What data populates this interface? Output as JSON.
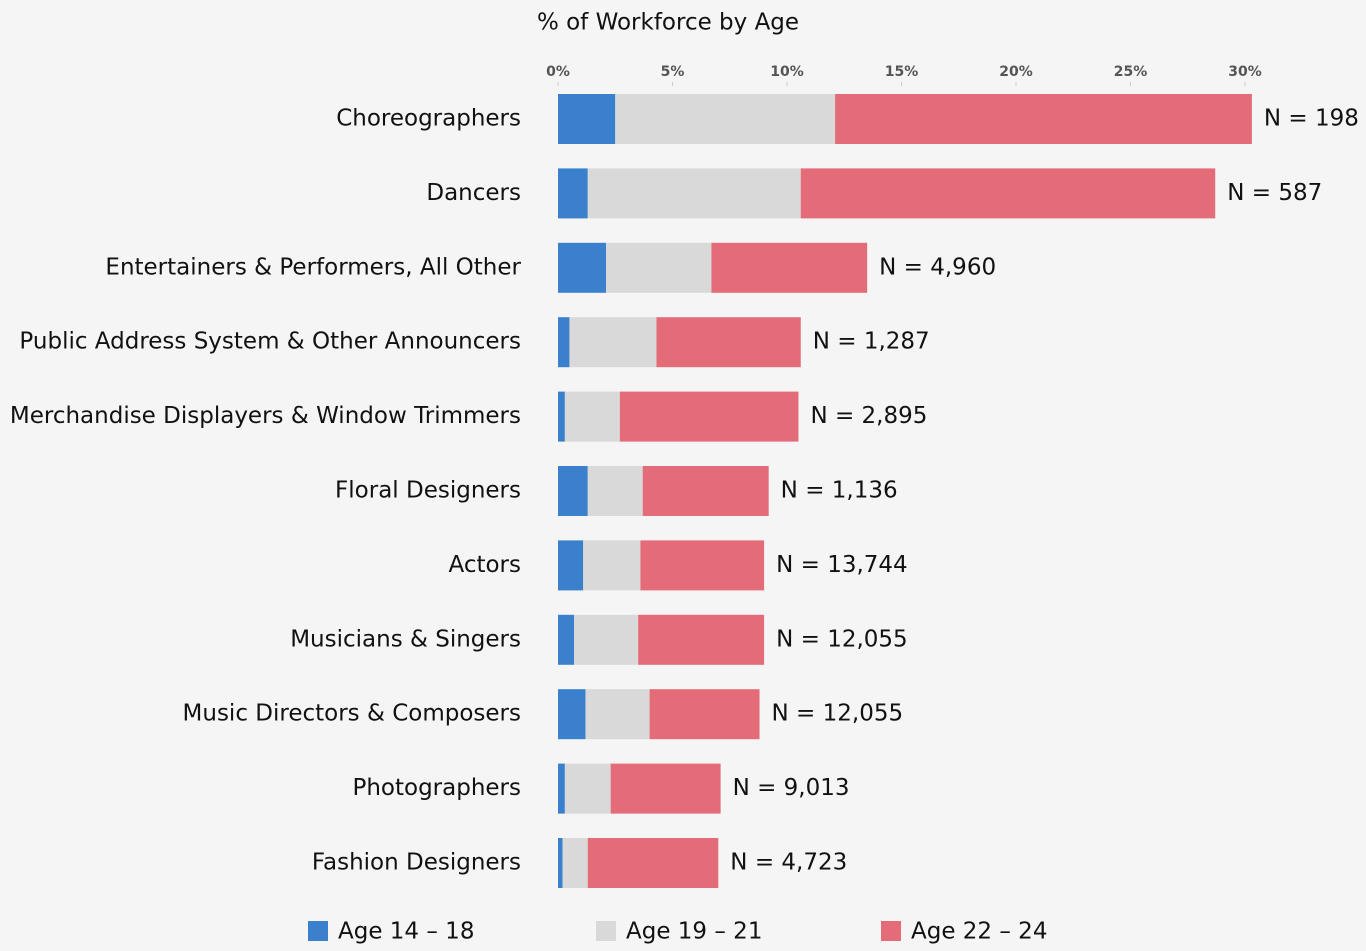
{
  "chart_data": {
    "type": "stacked_barh",
    "title": "% of Workforce by Age",
    "categories": [
      "Choreographers",
      "Dancers",
      "Entertainers & Performers, All Other",
      "Public Address System & Other Announcers",
      "Merchandise Displayers & Window Trimmers",
      "Floral Designers",
      "Actors",
      "Musicians & Singers",
      "Music Directors & Composers",
      "Photographers",
      "Fashion Designers"
    ],
    "series": [
      {
        "name": "Age 14 – 18",
        "color": "#3a80cc",
        "values": [
          2.5,
          1.3,
          2.1,
          0.5,
          0.3,
          1.3,
          1.1,
          0.7,
          1.2,
          0.3,
          0.2
        ]
      },
      {
        "name": "Age 19 – 21",
        "color": "#d9d9d9",
        "values": [
          9.6,
          9.3,
          4.6,
          3.8,
          2.4,
          2.4,
          2.5,
          2.8,
          2.8,
          2.0,
          1.1
        ]
      },
      {
        "name": "Age 22 – 24",
        "color": "#e46b78",
        "values": [
          18.2,
          18.1,
          6.8,
          6.3,
          7.8,
          5.5,
          5.4,
          5.5,
          4.8,
          4.8,
          5.7
        ]
      }
    ],
    "annotations": [
      "N = 198",
      "N = 587",
      "N = 4,960",
      "N = 1,287",
      "N = 2,895",
      "N = 1,136",
      "N = 13,744",
      "N = 12,055",
      "N = 12,055",
      "N = 9,013",
      "N = 4,723"
    ],
    "xlim": [
      0,
      30
    ],
    "xticks": [
      {
        "value": 0,
        "label": "0%"
      },
      {
        "value": 5,
        "label": "5%"
      },
      {
        "value": 10,
        "label": "10%"
      },
      {
        "value": 15,
        "label": "15%"
      },
      {
        "value": 20,
        "label": "20%"
      },
      {
        "value": 25,
        "label": "25%"
      },
      {
        "value": 30,
        "label": "30%"
      }
    ],
    "legend": "bottom"
  }
}
